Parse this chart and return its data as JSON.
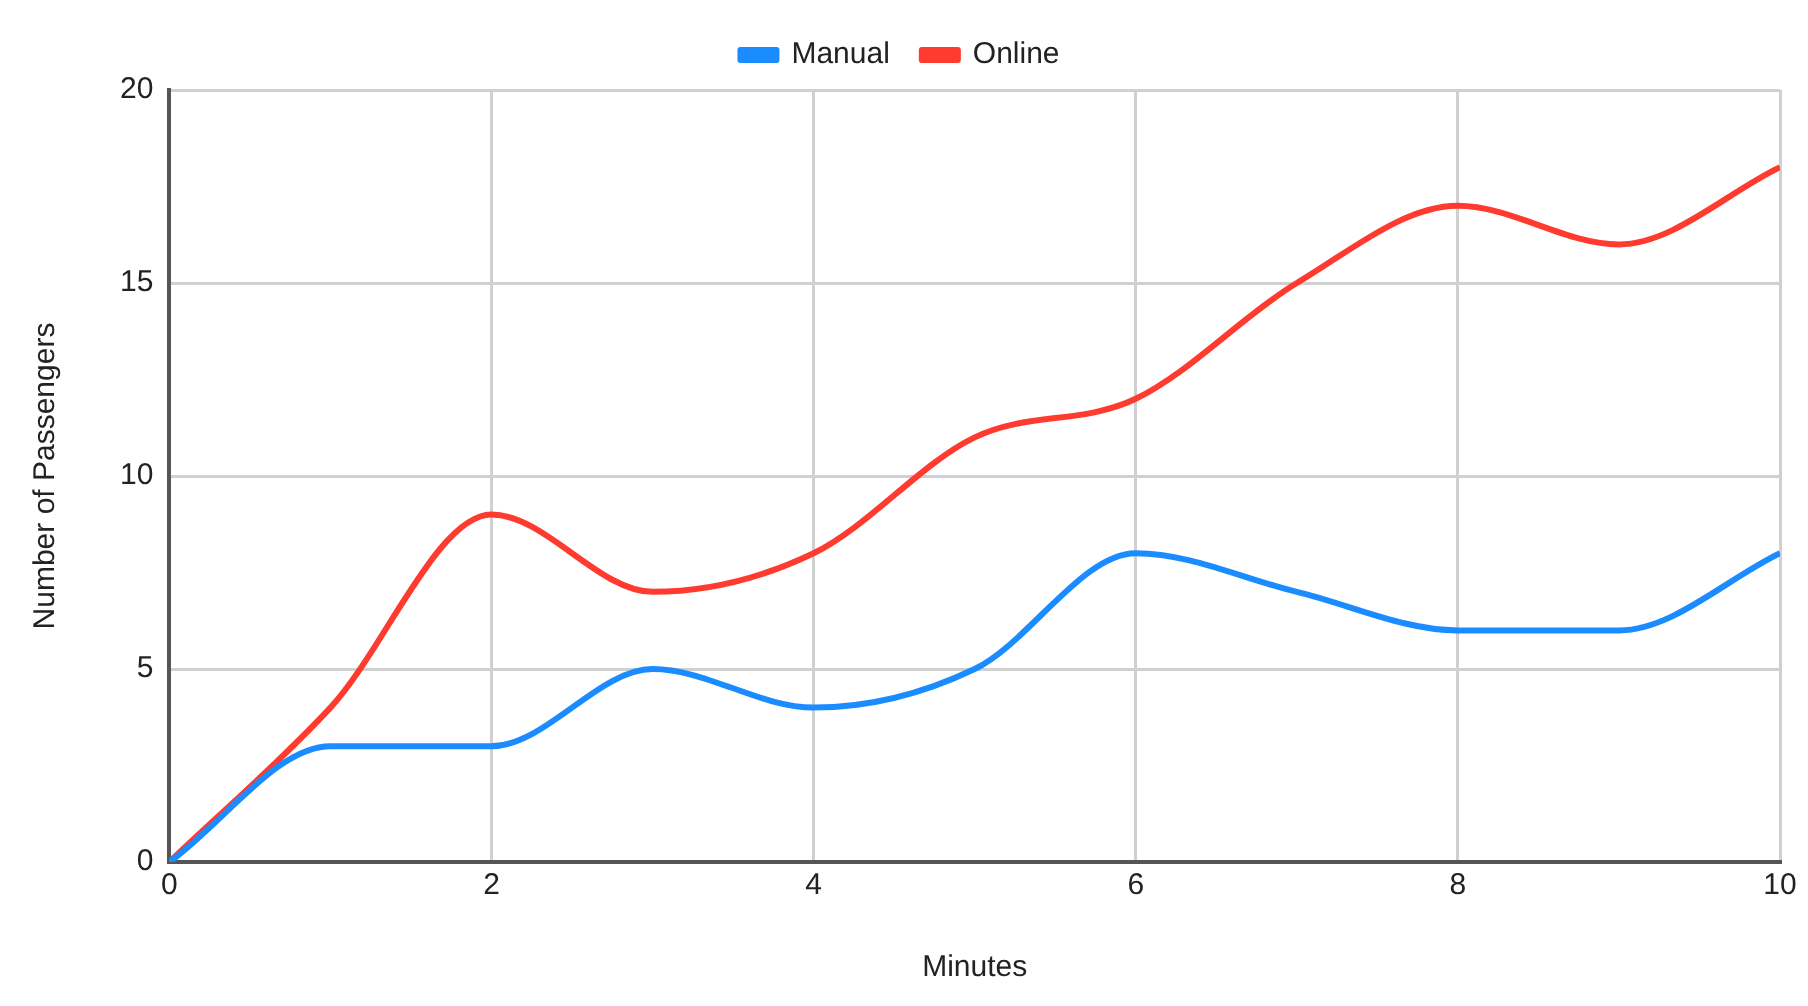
{
  "chart_data": {
    "type": "line",
    "xlabel": "Minutes",
    "ylabel": "Number of Passengers",
    "x": [
      0,
      1,
      2,
      3,
      4,
      5,
      6,
      7,
      8,
      9,
      10
    ],
    "series": [
      {
        "name": "Manual",
        "color": "#1a8cff",
        "values": [
          0,
          3,
          3,
          5,
          4,
          5,
          8,
          7,
          6,
          6,
          8
        ]
      },
      {
        "name": "Online",
        "color": "#ff3b30",
        "values": [
          0,
          4,
          9,
          7,
          8,
          11,
          12,
          15,
          17,
          16,
          18
        ]
      }
    ],
    "xlim": [
      0,
      10
    ],
    "xticks": [
      0,
      2,
      4,
      6,
      8,
      10
    ],
    "ylim": [
      0,
      20
    ],
    "yticks": [
      0,
      5,
      10,
      15,
      20
    ],
    "grid": true,
    "legend": "top",
    "marker": "none",
    "line_style": "solid"
  }
}
